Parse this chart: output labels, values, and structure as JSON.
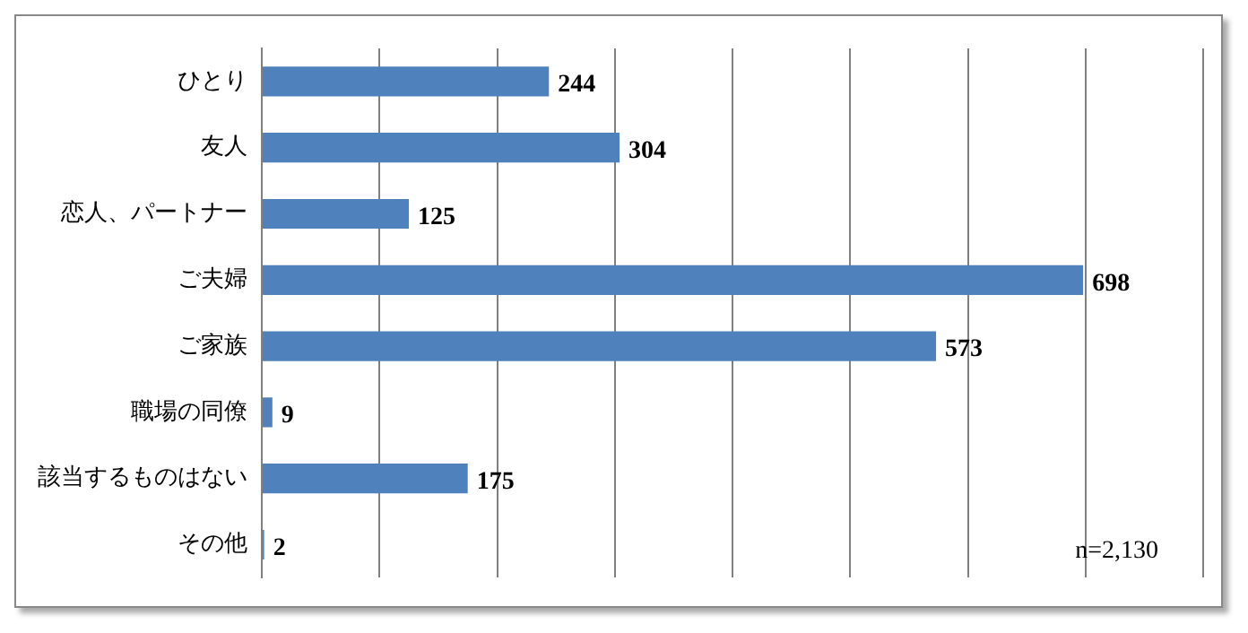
{
  "chart_data": {
    "type": "bar",
    "orientation": "horizontal",
    "categories": [
      "ひとり",
      "友人",
      "恋人、パートナー",
      "ご夫婦",
      "ご家族",
      "職場の同僚",
      "該当するものはない",
      "その他"
    ],
    "values": [
      244,
      304,
      125,
      698,
      573,
      9,
      175,
      2
    ],
    "color": "#4f81bd",
    "xlim": [
      0,
      800
    ],
    "xticks": [
      {
        "value": 0,
        "label": null
      },
      {
        "value": 100,
        "label": null
      },
      {
        "value": 200,
        "label": null
      },
      {
        "value": 300,
        "label": null
      },
      {
        "value": 400,
        "label": null
      },
      {
        "value": 500,
        "label": null
      },
      {
        "value": 600,
        "label": null
      },
      {
        "value": 700,
        "label": null
      },
      {
        "value": 800,
        "label": null
      }
    ],
    "grid": "x",
    "tick_labels": "y",
    "data_labels": true,
    "legend": false,
    "annotations": [
      "n=2,130"
    ]
  }
}
